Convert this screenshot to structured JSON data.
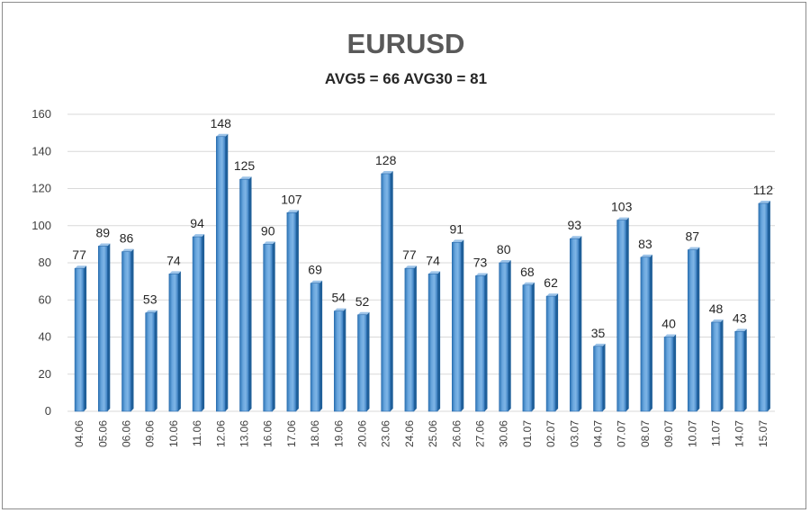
{
  "chart_data": {
    "type": "bar",
    "title": "EURUSD",
    "subtitle": "AVG5 = 66 AVG30 = 81",
    "xlabel": "",
    "ylabel": "",
    "ylim": [
      0,
      160
    ],
    "yticks": [
      0,
      20,
      40,
      60,
      80,
      100,
      120,
      140,
      160
    ],
    "grid": true,
    "legend": "none",
    "bar_color": "#5b9bd5",
    "categories": [
      "04.06",
      "05.06",
      "06.06",
      "09.06",
      "10.06",
      "11.06",
      "12.06",
      "13.06",
      "16.06",
      "17.06",
      "18.06",
      "19.06",
      "20.06",
      "23.06",
      "24.06",
      "25.06",
      "26.06",
      "27.06",
      "30.06",
      "01.07",
      "02.07",
      "03.07",
      "04.07",
      "07.07",
      "08.07",
      "09.07",
      "10.07",
      "11.07",
      "14.07",
      "15.07"
    ],
    "values": [
      77,
      89,
      86,
      53,
      74,
      94,
      148,
      125,
      90,
      107,
      69,
      54,
      52,
      128,
      77,
      74,
      91,
      73,
      80,
      68,
      62,
      93,
      35,
      103,
      83,
      40,
      87,
      48,
      43,
      112
    ]
  }
}
